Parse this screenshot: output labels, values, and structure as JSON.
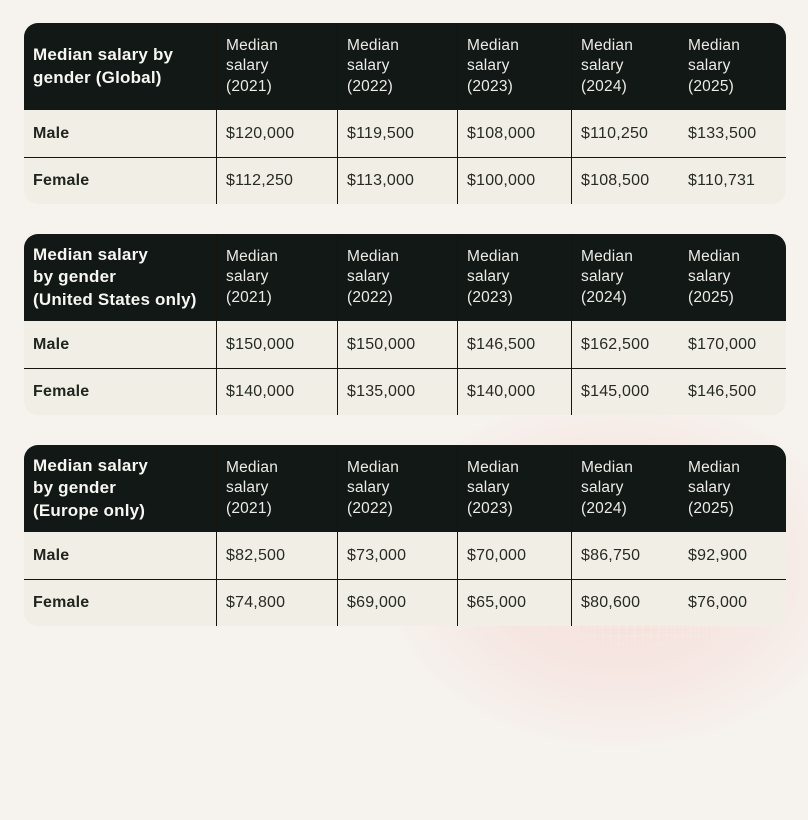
{
  "page": {
    "background_color": "#f6f3ef",
    "corner_glow_color": "#f7c7c1"
  },
  "theme": {
    "header_bg": "#111815",
    "header_text": "#f2f1ed",
    "row_bg": "#f1eee6",
    "row_text": "#262b23",
    "divider": "#15140f"
  },
  "tables": [
    {
      "name": "Global",
      "title": "Median salary by\ngender (Global)",
      "columns": [
        "Median\nsalary\n(2021)",
        "Median\nsalary\n(2022)",
        "Median\nsalary\n(2023)",
        "Median\nsalary\n(2024)",
        "Median\nsalary\n(2025)"
      ],
      "rows": [
        {
          "label": "Male",
          "values": [
            "$120,000",
            "$119,500",
            "$108,000",
            "$110,250",
            "$133,500"
          ]
        },
        {
          "label": "Female",
          "values": [
            "$112,250",
            "$113,000",
            "$100,000",
            "$108,500",
            "$110,731"
          ]
        }
      ]
    },
    {
      "name": "United States only",
      "title": "Median salary\nby gender\n(United States only)",
      "columns": [
        "Median\nsalary\n(2021)",
        "Median\nsalary\n(2022)",
        "Median\nsalary\n(2023)",
        "Median\nsalary\n(2024)",
        "Median\nsalary\n(2025)"
      ],
      "rows": [
        {
          "label": "Male",
          "values": [
            "$150,000",
            "$150,000",
            "$146,500",
            "$162,500",
            "$170,000"
          ]
        },
        {
          "label": "Female",
          "values": [
            "$140,000",
            "$135,000",
            "$140,000",
            "$145,000",
            "$146,500"
          ]
        }
      ]
    },
    {
      "name": "Europe only",
      "title": "Median salary\nby gender\n(Europe only)",
      "columns": [
        "Median\nsalary\n(2021)",
        "Median\nsalary\n(2022)",
        "Median\nsalary\n(2023)",
        "Median\nsalary\n(2024)",
        "Median\nsalary\n(2025)"
      ],
      "rows": [
        {
          "label": "Male",
          "values": [
            "$82,500",
            "$73,000",
            "$70,000",
            "$86,750",
            "$92,900"
          ]
        },
        {
          "label": "Female",
          "values": [
            "$74,800",
            "$69,000",
            "$65,000",
            "$80,600",
            "$76,000"
          ]
        }
      ]
    }
  ]
}
